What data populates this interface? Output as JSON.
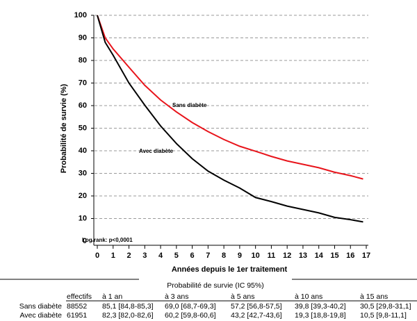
{
  "chart_data": {
    "type": "line",
    "y_label": "Probabilité de survie (%)",
    "x_label": "Années depuis le 1er traitement",
    "x": [
      0,
      0.5,
      1,
      2,
      3,
      4,
      5,
      6,
      7,
      8,
      9,
      10,
      11,
      12,
      13,
      14,
      15,
      16,
      16.8
    ],
    "series": [
      {
        "name": "Sans diabète",
        "color": "#e8141b",
        "values": [
          100,
          90,
          85.1,
          77,
          69,
          62.5,
          57.2,
          52.5,
          48.5,
          45,
          42,
          39.8,
          37.5,
          35.5,
          34,
          32.5,
          30.5,
          29,
          27.5
        ]
      },
      {
        "name": "Avec diabète",
        "color": "#000000",
        "values": [
          100,
          88,
          82.3,
          70,
          60.2,
          51,
          43.2,
          36.5,
          31,
          27,
          23.5,
          19.3,
          17.5,
          15.5,
          14,
          12.5,
          10.5,
          9.5,
          8.5
        ]
      }
    ],
    "annotation": "Log rank: p<0,0001",
    "xlim": [
      0,
      17
    ],
    "xticks": [
      0,
      1,
      2,
      3,
      4,
      5,
      6,
      7,
      8,
      9,
      10,
      11,
      12,
      13,
      14,
      15,
      16,
      17
    ],
    "ylim": [
      0,
      100
    ],
    "yticks": [
      0,
      10,
      20,
      30,
      40,
      50,
      60,
      70,
      80,
      90,
      100
    ],
    "grid": true
  },
  "table": {
    "title": "Probabilité de survie (IC 95%)",
    "header": [
      "effectifs",
      "à 1 an",
      "à 3 ans",
      "à 5 ans",
      "à 10 ans",
      "à 15 ans"
    ],
    "rows": [
      [
        "Sans diabète",
        "88552",
        "85,1 [84,8-85,3]",
        "69,0 [68,7-69,3]",
        "57,2 [56,8-57,5]",
        "39,8 [39,3-40,2]",
        "30,5 [29,8-31,1]"
      ],
      [
        "Avec diabète",
        "61951",
        "82,3 [82,0-82,6]",
        "60,2 [59,8-60,6]",
        "43,2 [42,7-43,6]",
        "19,3 [18,8-19,8]",
        "10,5 [9,8-11,1]"
      ]
    ]
  }
}
